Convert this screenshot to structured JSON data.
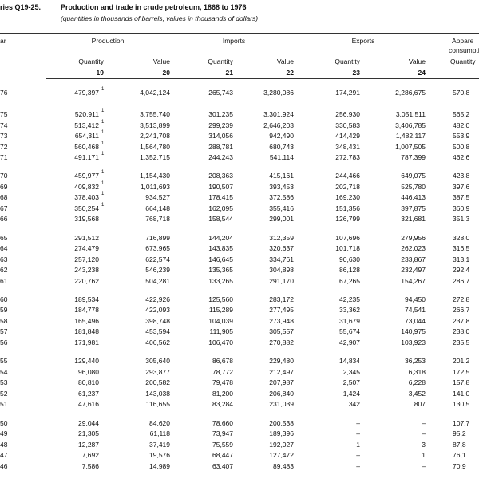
{
  "header": {
    "series_label": "ries Q19-25.",
    "title": "Production and trade in crude petroleum, 1868 to 1976",
    "subtitle": "(quantities in thousands of barrels, values in thousands of dollars)"
  },
  "columns": {
    "year": "ar",
    "groups": [
      "Production",
      "Imports",
      "Exports",
      "Appare"
    ],
    "group_sub": "consumpti",
    "subheads": [
      "Quantity",
      "Value",
      "Quantity",
      "Value",
      "Quantity",
      "Value",
      "Quantity"
    ],
    "numbers": [
      "19",
      "20",
      "21",
      "22",
      "23",
      "24"
    ]
  },
  "rows": [
    {
      "year": "76",
      "cells": [
        "479,397",
        "4,042,124",
        "265,743",
        "3,280,086",
        "174,291",
        "2,286,675",
        "570,8"
      ],
      "note": "1"
    },
    {
      "year": "75",
      "cells": [
        "520,911",
        "3,755,740",
        "301,235",
        "3,301,924",
        "256,930",
        "3,051,511",
        "565,2"
      ],
      "note": "1"
    },
    {
      "year": "74",
      "cells": [
        "513,412",
        "3,513,899",
        "299,239",
        "2,646,203",
        "330,583",
        "3,406,785",
        "482,0"
      ],
      "note": "1"
    },
    {
      "year": "73",
      "cells": [
        "654,311",
        "2,241,708",
        "314,056",
        "942,490",
        "414,429",
        "1,482,117",
        "553,9"
      ],
      "note": "1"
    },
    {
      "year": "72",
      "cells": [
        "560,468",
        "1,564,780",
        "288,781",
        "680,743",
        "348,431",
        "1,007,505",
        "500,8"
      ],
      "note": "1"
    },
    {
      "year": "71",
      "cells": [
        "491,171",
        "1,352,715",
        "244,243",
        "541,114",
        "272,783",
        "787,399",
        "462,6"
      ],
      "note": "1"
    },
    {
      "year": "70",
      "cells": [
        "459,977",
        "1,154,430",
        "208,363",
        "415,161",
        "244,466",
        "649,075",
        "423,8"
      ],
      "note": "1"
    },
    {
      "year": "69",
      "cells": [
        "409,832",
        "1,011,693",
        "190,507",
        "393,453",
        "202,718",
        "525,780",
        "397,6"
      ],
      "note": "1"
    },
    {
      "year": "68",
      "cells": [
        "378,403",
        "934,527",
        "178,415",
        "372,586",
        "169,230",
        "446,413",
        "387,5"
      ],
      "note": "1"
    },
    {
      "year": "67",
      "cells": [
        "350,254",
        "664,148",
        "162,095",
        "355,416",
        "151,356",
        "397,875",
        "360,9"
      ],
      "note": "1"
    },
    {
      "year": "66",
      "cells": [
        "319,568",
        "768,718",
        "158,544",
        "299,001",
        "126,799",
        "321,681",
        "351,3"
      ]
    },
    {
      "year": "65",
      "cells": [
        "291,512",
        "716,899",
        "144,204",
        "312,359",
        "107,696",
        "279,956",
        "328,0"
      ]
    },
    {
      "year": "64",
      "cells": [
        "274,479",
        "673,965",
        "143,835",
        "320,637",
        "101,718",
        "262,023",
        "316,5"
      ]
    },
    {
      "year": "63",
      "cells": [
        "257,120",
        "622,574",
        "146,645",
        "334,761",
        "90,630",
        "233,867",
        "313,1"
      ]
    },
    {
      "year": "62",
      "cells": [
        "243,238",
        "546,239",
        "135,365",
        "304,898",
        "86,128",
        "232,497",
        "292,4"
      ]
    },
    {
      "year": "61",
      "cells": [
        "220,762",
        "504,281",
        "133,265",
        "291,170",
        "67,265",
        "154,267",
        "286,7"
      ]
    },
    {
      "year": "60",
      "cells": [
        "189,534",
        "422,926",
        "125,560",
        "283,172",
        "42,235",
        "94,450",
        "272,8"
      ]
    },
    {
      "year": "59",
      "cells": [
        "184,778",
        "422,093",
        "115,289",
        "277,495",
        "33,362",
        "74,541",
        "266,7"
      ]
    },
    {
      "year": "58",
      "cells": [
        "165,496",
        "398,748",
        "104,039",
        "273,948",
        "31,679",
        "73,044",
        "237,8"
      ]
    },
    {
      "year": "57",
      "cells": [
        "181,848",
        "453,594",
        "111,905",
        "305,557",
        "55,674",
        "140,975",
        "238,0"
      ]
    },
    {
      "year": "56",
      "cells": [
        "171,981",
        "406,562",
        "106,470",
        "270,882",
        "42,907",
        "103,923",
        "235,5"
      ]
    },
    {
      "year": "55",
      "cells": [
        "129,440",
        "305,640",
        "86,678",
        "229,480",
        "14,834",
        "36,253",
        "201,2"
      ]
    },
    {
      "year": "54",
      "cells": [
        "96,080",
        "293,877",
        "78,772",
        "212,497",
        "2,345",
        "6,318",
        "172,5"
      ]
    },
    {
      "year": "53",
      "cells": [
        "80,810",
        "200,582",
        "79,478",
        "207,987",
        "2,507",
        "6,228",
        "157,8"
      ]
    },
    {
      "year": "52",
      "cells": [
        "61,237",
        "143,038",
        "81,200",
        "206,840",
        "1,424",
        "3,452",
        "141,0"
      ]
    },
    {
      "year": "51",
      "cells": [
        "47,616",
        "116,655",
        "83,284",
        "231,039",
        "342",
        "807",
        "130,5"
      ]
    },
    {
      "year": "50",
      "cells": [
        "29,044",
        "84,620",
        "78,660",
        "200,538",
        "–",
        "–",
        "107,7"
      ]
    },
    {
      "year": "49",
      "cells": [
        "21,305",
        "61,118",
        "73,947",
        "189,396",
        "–",
        "–",
        "95,2"
      ]
    },
    {
      "year": "48",
      "cells": [
        "12,287",
        "37,419",
        "75,559",
        "192,027",
        "1",
        "3",
        "87,8"
      ]
    },
    {
      "year": "47",
      "cells": [
        "7,692",
        "19,576",
        "68,447",
        "127,472",
        "–",
        "1",
        "76,1"
      ]
    },
    {
      "year": "46",
      "cells": [
        "7,586",
        "14,989",
        "63,407",
        "89,483",
        "–",
        "–",
        "70,9"
      ]
    }
  ]
}
